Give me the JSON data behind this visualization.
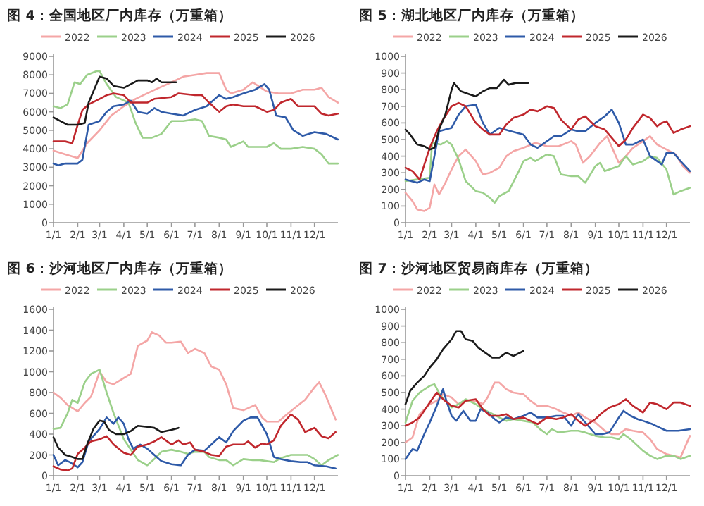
{
  "chart_data": [
    {
      "type": "line",
      "title": "图 4：全国地区厂内库存（万重箱）",
      "legend": "top",
      "xlim": [
        "--01-01",
        "--12-31"
      ],
      "xticks": [
        {
          "value": "--01-01",
          "label": "1/1"
        },
        {
          "value": "--02-01",
          "label": "2/1"
        },
        {
          "value": "--03-01",
          "label": "3/1"
        },
        {
          "value": "--04-01",
          "label": "4/1"
        },
        {
          "value": "--05-01",
          "label": "5/1"
        },
        {
          "value": "--06-01",
          "label": "6/1"
        },
        {
          "value": "--07-01",
          "label": "7/1"
        },
        {
          "value": "--08-01",
          "label": "8/1"
        },
        {
          "value": "--09-01",
          "label": "9/1"
        },
        {
          "value": "--10-01",
          "label": "10/1"
        },
        {
          "value": "--11-01",
          "label": "11/1"
        },
        {
          "value": "--12-01",
          "label": "12/1"
        }
      ],
      "ylim": [
        0,
        9000
      ],
      "yticks": [
        0,
        1000,
        2000,
        3000,
        4000,
        5000,
        6000,
        7000,
        8000,
        9000
      ],
      "series": [
        {
          "name": "2022",
          "color": "#f4a6a6",
          "x": [
            "--01-01",
            "--01-16",
            "--02-01",
            "--02-13",
            "--03-01",
            "--03-16",
            "--04-01",
            "--04-16",
            "--05-01",
            "--05-16",
            "--06-01",
            "--06-16",
            "--07-01",
            "--07-16",
            "--08-01",
            "--08-10",
            "--08-16",
            "--09-01",
            "--09-13",
            "--10-01",
            "--10-16",
            "--11-01",
            "--11-16",
            "--12-01",
            "--12-10",
            "--12-19",
            "--12-31"
          ],
          "values": [
            3900,
            3700,
            3500,
            4300,
            5000,
            5800,
            6300,
            6700,
            7000,
            7300,
            7600,
            7900,
            8000,
            8100,
            8100,
            7200,
            7000,
            7200,
            7600,
            7100,
            7000,
            7000,
            7200,
            7200,
            7300,
            6800,
            6500
          ]
        },
        {
          "name": "2023",
          "color": "#9bd08a",
          "x": [
            "--01-01",
            "--01-10",
            "--01-19",
            "--01-28",
            "--02-04",
            "--02-13",
            "--02-25",
            "--03-01",
            "--03-10",
            "--03-22",
            "--04-07",
            "--04-16",
            "--04-25",
            "--05-07",
            "--05-19",
            "--06-01",
            "--06-16",
            "--07-01",
            "--07-10",
            "--07-19",
            "--08-01",
            "--08-10",
            "--08-16",
            "--09-01",
            "--09-07",
            "--10-01",
            "--10-10",
            "--10-19",
            "--11-01",
            "--11-16",
            "--12-01",
            "--12-10",
            "--12-19",
            "--12-31"
          ],
          "values": [
            6300,
            6200,
            6400,
            7600,
            7500,
            8000,
            8200,
            8200,
            7500,
            6800,
            6500,
            5400,
            4600,
            4600,
            4800,
            5500,
            5500,
            5600,
            5500,
            4700,
            4600,
            4500,
            4100,
            4400,
            4100,
            4100,
            4300,
            4000,
            4000,
            4100,
            4000,
            3700,
            3200,
            3200
          ]
        },
        {
          "name": "2024",
          "color": "#2e5aa8",
          "x": [
            "--01-01",
            "--01-07",
            "--01-16",
            "--02-01",
            "--02-07",
            "--02-15",
            "--03-01",
            "--03-10",
            "--03-19",
            "--04-01",
            "--04-10",
            "--04-19",
            "--05-01",
            "--05-10",
            "--05-19",
            "--06-01",
            "--06-16",
            "--07-01",
            "--07-16",
            "--08-01",
            "--08-10",
            "--08-19",
            "--09-01",
            "--09-16",
            "--09-28",
            "--10-04",
            "--10-13",
            "--10-25",
            "--11-04",
            "--11-16",
            "--12-01",
            "--12-16",
            "--12-31"
          ],
          "values": [
            3200,
            3100,
            3200,
            3200,
            3400,
            5300,
            5500,
            6000,
            6300,
            6400,
            6600,
            6000,
            5900,
            6200,
            6000,
            5900,
            5800,
            6100,
            6300,
            6900,
            6700,
            6800,
            7000,
            7200,
            7500,
            7200,
            5800,
            5700,
            5000,
            4700,
            4900,
            4800,
            4500
          ]
        },
        {
          "name": "2025",
          "color": "#c0272d",
          "x": [
            "--01-01",
            "--01-16",
            "--01-25",
            "--02-01",
            "--02-07",
            "--02-15",
            "--03-01",
            "--03-10",
            "--03-19",
            "--04-01",
            "--04-10",
            "--04-25",
            "--05-01",
            "--05-10",
            "--06-01",
            "--06-10",
            "--07-01",
            "--07-10",
            "--07-19",
            "--08-01",
            "--08-10",
            "--08-19",
            "--09-01",
            "--09-16",
            "--10-01",
            "--10-10",
            "--10-19",
            "--11-01",
            "--11-10",
            "--12-01",
            "--12-10",
            "--12-19",
            "--12-31"
          ],
          "values": [
            4400,
            4400,
            4300,
            5300,
            6100,
            6400,
            6700,
            6900,
            7000,
            6900,
            6500,
            6500,
            6500,
            6700,
            6800,
            7000,
            6900,
            6900,
            6500,
            6000,
            6300,
            6400,
            6300,
            6300,
            6000,
            6100,
            6500,
            6700,
            6300,
            6300,
            5900,
            5800,
            5900
          ]
        },
        {
          "name": "2026",
          "color": "#1a1a1a",
          "x": [
            "--01-01",
            "--01-10",
            "--01-19",
            "--02-01",
            "--02-10",
            "--02-15",
            "--02-23",
            "--03-01",
            "--03-10",
            "--03-19",
            "--04-01",
            "--04-10",
            "--04-19",
            "--05-01",
            "--05-07",
            "--05-13",
            "--05-19",
            "--06-01",
            "--06-07"
          ],
          "values": [
            5700,
            5500,
            5300,
            5300,
            5400,
            6500,
            7300,
            7900,
            7800,
            7400,
            7300,
            7500,
            7700,
            7700,
            7600,
            7800,
            7600,
            7600,
            7600
          ]
        }
      ]
    },
    {
      "type": "line",
      "title": "图 5：湖北地区厂内库存（万重箱）",
      "legend": "top",
      "xlim": [
        "--01-01",
        "--12-31"
      ],
      "xticks": [
        {
          "value": "--01-01",
          "label": "1/1"
        },
        {
          "value": "--02-01",
          "label": "2/1"
        },
        {
          "value": "--03-01",
          "label": "3/1"
        },
        {
          "value": "--04-01",
          "label": "4/1"
        },
        {
          "value": "--05-01",
          "label": "5/1"
        },
        {
          "value": "--06-01",
          "label": "6/1"
        },
        {
          "value": "--07-01",
          "label": "7/1"
        },
        {
          "value": "--08-01",
          "label": "8/1"
        },
        {
          "value": "--09-01",
          "label": "9/1"
        },
        {
          "value": "--10-01",
          "label": "10/1"
        },
        {
          "value": "--11-01",
          "label": "11/1"
        },
        {
          "value": "--12-01",
          "label": "12/1"
        }
      ],
      "ylim": [
        0,
        1000
      ],
      "yticks": [
        0,
        100,
        200,
        300,
        400,
        500,
        600,
        700,
        800,
        900,
        1000
      ],
      "series": [
        {
          "name": "2022",
          "color": "#f4a6a6",
          "x": [
            "--01-01",
            "--01-10",
            "--01-16",
            "--01-25",
            "--02-01",
            "--02-07",
            "--02-13",
            "--02-21",
            "--03-01",
            "--03-10",
            "--03-19",
            "--04-01",
            "--04-10",
            "--04-19",
            "--05-01",
            "--05-10",
            "--05-19",
            "--06-01",
            "--06-16",
            "--07-01",
            "--07-16",
            "--08-01",
            "--08-07",
            "--08-16",
            "--08-25",
            "--09-07",
            "--09-16",
            "--10-01",
            "--10-10",
            "--10-19",
            "--11-01",
            "--11-10",
            "--11-19",
            "--12-01",
            "--12-13",
            "--12-22",
            "--12-31"
          ],
          "values": [
            180,
            130,
            80,
            70,
            90,
            230,
            170,
            240,
            320,
            400,
            440,
            370,
            290,
            300,
            330,
            400,
            430,
            450,
            480,
            460,
            460,
            490,
            470,
            360,
            400,
            480,
            520,
            360,
            400,
            450,
            490,
            520,
            470,
            440,
            410,
            340,
            300
          ]
        },
        {
          "name": "2023",
          "color": "#9bd08a",
          "x": [
            "--01-01",
            "--01-16",
            "--02-01",
            "--02-04",
            "--02-15",
            "--02-23",
            "--03-01",
            "--03-10",
            "--03-19",
            "--04-01",
            "--04-10",
            "--04-19",
            "--04-25",
            "--05-01",
            "--05-13",
            "--05-25",
            "--06-01",
            "--06-10",
            "--06-16",
            "--07-01",
            "--07-10",
            "--07-19",
            "--08-01",
            "--08-10",
            "--08-19",
            "--09-01",
            "--09-07",
            "--09-13",
            "--10-01",
            "--10-10",
            "--10-19",
            "--11-01",
            "--11-10",
            "--11-19",
            "--12-01",
            "--12-10",
            "--12-19",
            "--12-31"
          ],
          "values": [
            250,
            260,
            270,
            480,
            470,
            490,
            470,
            380,
            250,
            190,
            180,
            150,
            120,
            160,
            190,
            300,
            370,
            390,
            370,
            410,
            400,
            290,
            280,
            280,
            240,
            340,
            360,
            310,
            340,
            400,
            350,
            370,
            400,
            390,
            320,
            170,
            190,
            210
          ]
        },
        {
          "name": "2024",
          "color": "#2e5aa8",
          "x": [
            "--01-01",
            "--01-16",
            "--01-25",
            "--02-01",
            "--02-07",
            "--02-13",
            "--02-21",
            "--03-01",
            "--03-10",
            "--03-19",
            "--04-01",
            "--04-10",
            "--04-19",
            "--05-01",
            "--05-16",
            "--06-01",
            "--06-10",
            "--06-19",
            "--07-01",
            "--07-10",
            "--07-19",
            "--08-01",
            "--08-10",
            "--08-19",
            "--09-01",
            "--09-13",
            "--09-22",
            "--10-01",
            "--10-10",
            "--10-19",
            "--11-01",
            "--11-10",
            "--11-19",
            "--11-25",
            "--12-01",
            "--12-10",
            "--12-19",
            "--12-31"
          ],
          "values": [
            260,
            240,
            260,
            250,
            400,
            550,
            560,
            570,
            650,
            700,
            710,
            600,
            530,
            570,
            550,
            530,
            470,
            450,
            490,
            520,
            520,
            560,
            550,
            550,
            600,
            640,
            680,
            600,
            470,
            470,
            500,
            400,
            370,
            350,
            420,
            420,
            370,
            310
          ]
        },
        {
          "name": "2025",
          "color": "#c0272d",
          "x": [
            "--01-01",
            "--01-10",
            "--01-19",
            "--02-01",
            "--02-10",
            "--02-18",
            "--03-01",
            "--03-10",
            "--03-19",
            "--04-01",
            "--04-10",
            "--04-19",
            "--05-01",
            "--05-10",
            "--05-19",
            "--06-01",
            "--06-10",
            "--06-19",
            "--07-01",
            "--07-10",
            "--07-19",
            "--08-01",
            "--08-10",
            "--08-19",
            "--09-01",
            "--09-13",
            "--09-22",
            "--10-01",
            "--10-10",
            "--10-19",
            "--11-01",
            "--11-10",
            "--11-19",
            "--11-25",
            "--12-01",
            "--12-10",
            "--12-19",
            "--12-31"
          ],
          "values": [
            330,
            310,
            260,
            450,
            550,
            620,
            700,
            720,
            700,
            600,
            560,
            530,
            530,
            590,
            630,
            650,
            680,
            670,
            700,
            690,
            620,
            560,
            620,
            640,
            580,
            560,
            510,
            460,
            500,
            570,
            650,
            630,
            580,
            600,
            610,
            540,
            560,
            580
          ]
        },
        {
          "name": "2026",
          "color": "#1a1a1a",
          "x": [
            "--01-01",
            "--01-07",
            "--01-16",
            "--01-25",
            "--02-01",
            "--02-07",
            "--02-13",
            "--02-21",
            "--03-01",
            "--03-04",
            "--03-13",
            "--03-25",
            "--04-01",
            "--04-10",
            "--04-19",
            "--04-28",
            "--05-07",
            "--05-13",
            "--05-22",
            "--06-01",
            "--06-07"
          ],
          "values": [
            560,
            530,
            470,
            460,
            440,
            450,
            560,
            650,
            800,
            840,
            790,
            770,
            760,
            790,
            810,
            810,
            860,
            830,
            840,
            840,
            840
          ]
        }
      ]
    },
    {
      "type": "line",
      "title": "图 6：沙河地区厂内库存（万重箱）",
      "legend": "top",
      "xlim": [
        "--01-01",
        "--12-31"
      ],
      "xticks": [
        {
          "value": "--01-01",
          "label": "1/1"
        },
        {
          "value": "--02-01",
          "label": "2/1"
        },
        {
          "value": "--03-01",
          "label": "3/1"
        },
        {
          "value": "--04-01",
          "label": "4/1"
        },
        {
          "value": "--05-01",
          "label": "5/1"
        },
        {
          "value": "--06-01",
          "label": "6/1"
        },
        {
          "value": "--07-01",
          "label": "7/1"
        },
        {
          "value": "--08-01",
          "label": "8/1"
        },
        {
          "value": "--09-01",
          "label": "9/1"
        },
        {
          "value": "--10-01",
          "label": "10/1"
        },
        {
          "value": "--11-01",
          "label": "11/1"
        },
        {
          "value": "--12-01",
          "label": "12/1"
        }
      ],
      "ylim": [
        0,
        1600
      ],
      "yticks": [
        0,
        200,
        400,
        600,
        800,
        1000,
        1200,
        1400,
        1600
      ],
      "series": [
        {
          "name": "2022",
          "color": "#f4a6a6",
          "x": [
            "--01-01",
            "--01-10",
            "--01-19",
            "--02-01",
            "--02-10",
            "--02-18",
            "--03-01",
            "--03-10",
            "--03-19",
            "--04-01",
            "--04-10",
            "--04-19",
            "--05-01",
            "--05-07",
            "--05-16",
            "--05-25",
            "--06-01",
            "--06-13",
            "--06-22",
            "--07-01",
            "--07-13",
            "--07-22",
            "--08-01",
            "--08-10",
            "--08-19",
            "--09-01",
            "--09-16",
            "--09-25",
            "--10-01",
            "--10-16",
            "--10-25",
            "--11-07",
            "--11-19",
            "--12-01",
            "--12-07",
            "--12-16",
            "--12-28"
          ],
          "values": [
            800,
            750,
            680,
            620,
            700,
            760,
            1000,
            900,
            880,
            940,
            980,
            1250,
            1300,
            1380,
            1350,
            1280,
            1280,
            1290,
            1180,
            1220,
            1180,
            1050,
            1020,
            880,
            650,
            630,
            680,
            560,
            520,
            520,
            580,
            660,
            730,
            850,
            900,
            760,
            540
          ]
        },
        {
          "name": "2023",
          "color": "#9bd08a",
          "x": [
            "--01-01",
            "--01-10",
            "--01-19",
            "--01-25",
            "--02-01",
            "--02-10",
            "--02-18",
            "--03-01",
            "--03-10",
            "--03-19",
            "--04-01",
            "--04-10",
            "--04-19",
            "--05-01",
            "--05-10",
            "--05-19",
            "--06-01",
            "--06-13",
            "--06-22",
            "--07-01",
            "--07-13",
            "--07-19",
            "--08-01",
            "--08-10",
            "--08-19",
            "--09-01",
            "--09-13",
            "--09-22",
            "--10-01",
            "--10-10",
            "--10-19",
            "--11-01",
            "--11-13",
            "--11-22",
            "--12-01",
            "--12-10",
            "--12-19",
            "--12-31"
          ],
          "values": [
            450,
            460,
            600,
            730,
            700,
            900,
            980,
            1020,
            800,
            600,
            350,
            250,
            150,
            100,
            160,
            230,
            250,
            230,
            210,
            230,
            230,
            180,
            150,
            150,
            100,
            160,
            150,
            150,
            140,
            130,
            170,
            200,
            200,
            200,
            160,
            100,
            150,
            200
          ]
        },
        {
          "name": "2024",
          "color": "#2e5aa8",
          "x": [
            "--01-01",
            "--01-07",
            "--01-16",
            "--01-22",
            "--02-01",
            "--02-07",
            "--02-15",
            "--03-01",
            "--03-10",
            "--03-19",
            "--03-25",
            "--04-01",
            "--04-07",
            "--04-13",
            "--04-22",
            "--05-01",
            "--05-10",
            "--05-19",
            "--06-01",
            "--06-13",
            "--06-22",
            "--07-01",
            "--07-13",
            "--07-22",
            "--08-01",
            "--08-10",
            "--08-19",
            "--09-01",
            "--09-10",
            "--09-19",
            "--10-01",
            "--10-10",
            "--10-19",
            "--11-01",
            "--11-13",
            "--11-22",
            "--12-01",
            "--12-16",
            "--12-28"
          ],
          "values": [
            200,
            100,
            150,
            130,
            80,
            130,
            330,
            450,
            560,
            500,
            560,
            500,
            350,
            260,
            300,
            260,
            200,
            140,
            110,
            100,
            200,
            250,
            240,
            300,
            370,
            320,
            430,
            530,
            560,
            560,
            400,
            180,
            160,
            140,
            130,
            130,
            100,
            90,
            70
          ]
        },
        {
          "name": "2025",
          "color": "#c0272d",
          "x": [
            "--01-01",
            "--01-10",
            "--01-19",
            "--01-25",
            "--02-01",
            "--02-10",
            "--02-18",
            "--03-01",
            "--03-10",
            "--03-19",
            "--04-01",
            "--04-10",
            "--04-19",
            "--05-01",
            "--05-10",
            "--05-19",
            "--06-01",
            "--06-10",
            "--06-16",
            "--06-25",
            "--07-01",
            "--07-13",
            "--07-22",
            "--08-01",
            "--08-10",
            "--08-19",
            "--09-01",
            "--09-07",
            "--09-16",
            "--09-25",
            "--10-01",
            "--10-10",
            "--10-19",
            "--11-01",
            "--11-10",
            "--11-19",
            "--12-01",
            "--12-10",
            "--12-19",
            "--12-28"
          ],
          "values": [
            90,
            60,
            50,
            70,
            210,
            270,
            330,
            350,
            380,
            300,
            220,
            200,
            280,
            300,
            330,
            370,
            300,
            340,
            300,
            320,
            250,
            230,
            200,
            190,
            280,
            300,
            300,
            330,
            270,
            310,
            300,
            340,
            480,
            590,
            540,
            420,
            460,
            380,
            360,
            420
          ]
        },
        {
          "name": "2026",
          "color": "#1a1a1a",
          "x": [
            "--01-01",
            "--01-07",
            "--01-16",
            "--01-25",
            "--02-01",
            "--02-07",
            "--02-13",
            "--02-21",
            "--03-01",
            "--03-07",
            "--03-13",
            "--03-22",
            "--04-01",
            "--04-10",
            "--04-19",
            "--05-01",
            "--05-10",
            "--05-19",
            "--06-01",
            "--06-10"
          ],
          "values": [
            370,
            270,
            200,
            180,
            160,
            160,
            300,
            450,
            530,
            520,
            440,
            400,
            400,
            430,
            480,
            470,
            460,
            420,
            440,
            460
          ]
        }
      ]
    },
    {
      "type": "line",
      "title": "图 7：沙河地区贸易商库存（万重箱）",
      "legend": "top",
      "xlim": [
        "--01-01",
        "--12-31"
      ],
      "xticks": [
        {
          "value": "--01-01",
          "label": "1/1"
        },
        {
          "value": "--02-01",
          "label": "2/1"
        },
        {
          "value": "--03-01",
          "label": "3/1"
        },
        {
          "value": "--04-01",
          "label": "4/1"
        },
        {
          "value": "--05-01",
          "label": "5/1"
        },
        {
          "value": "--06-01",
          "label": "6/1"
        },
        {
          "value": "--07-01",
          "label": "7/1"
        },
        {
          "value": "--08-01",
          "label": "8/1"
        },
        {
          "value": "--09-01",
          "label": "9/1"
        },
        {
          "value": "--10-01",
          "label": "10/1"
        },
        {
          "value": "--11-01",
          "label": "11/1"
        },
        {
          "value": "--12-01",
          "label": "12/1"
        }
      ],
      "ylim": [
        0,
        1000
      ],
      "yticks": [
        0,
        100,
        200,
        300,
        400,
        500,
        600,
        700,
        800,
        900,
        1000
      ],
      "series": [
        {
          "name": "2022",
          "color": "#f4a6a6",
          "x": [
            "--01-01",
            "--01-10",
            "--01-19",
            "--02-01",
            "--02-10",
            "--02-18",
            "--03-01",
            "--03-10",
            "--03-19",
            "--04-01",
            "--04-10",
            "--04-16",
            "--04-25",
            "--05-01",
            "--05-10",
            "--05-19",
            "--06-01",
            "--06-10",
            "--06-19",
            "--07-01",
            "--07-13",
            "--07-22",
            "--08-01",
            "--08-10",
            "--08-19",
            "--09-01",
            "--09-13",
            "--09-22",
            "--10-01",
            "--10-10",
            "--10-19",
            "--11-01",
            "--11-10",
            "--11-19",
            "--12-01",
            "--12-10",
            "--12-19",
            "--12-31"
          ],
          "values": [
            200,
            230,
            370,
            430,
            450,
            490,
            470,
            430,
            450,
            450,
            430,
            470,
            560,
            560,
            520,
            500,
            490,
            450,
            420,
            420,
            400,
            380,
            360,
            380,
            350,
            320,
            270,
            250,
            250,
            280,
            270,
            260,
            220,
            160,
            130,
            120,
            110,
            240
          ]
        },
        {
          "name": "2023",
          "color": "#9bd08a",
          "x": [
            "--01-01",
            "--01-10",
            "--01-19",
            "--02-01",
            "--02-07",
            "--02-15",
            "--02-23",
            "--03-01",
            "--03-10",
            "--03-19",
            "--04-01",
            "--04-10",
            "--04-19",
            "--05-01",
            "--05-10",
            "--05-19",
            "--06-01",
            "--06-13",
            "--06-22",
            "--07-01",
            "--07-07",
            "--07-16",
            "--08-01",
            "--08-10",
            "--08-19",
            "--09-01",
            "--09-13",
            "--09-22",
            "--10-01",
            "--10-07",
            "--10-16",
            "--11-01",
            "--11-10",
            "--11-19",
            "--12-01",
            "--12-10",
            "--12-19",
            "--12-31"
          ],
          "values": [
            320,
            450,
            500,
            540,
            550,
            480,
            440,
            410,
            430,
            460,
            430,
            400,
            380,
            350,
            330,
            340,
            330,
            320,
            280,
            250,
            280,
            260,
            270,
            270,
            260,
            240,
            230,
            230,
            220,
            250,
            220,
            150,
            120,
            100,
            120,
            120,
            100,
            120
          ]
        },
        {
          "name": "2024",
          "color": "#2e5aa8",
          "x": [
            "--01-01",
            "--01-10",
            "--01-16",
            "--01-25",
            "--02-01",
            "--02-10",
            "--02-18",
            "--02-23",
            "--03-01",
            "--03-07",
            "--03-16",
            "--03-25",
            "--04-01",
            "--04-07",
            "--04-16",
            "--04-25",
            "--05-01",
            "--05-10",
            "--05-19",
            "--06-01",
            "--06-10",
            "--06-19",
            "--07-01",
            "--07-13",
            "--07-22",
            "--08-01",
            "--08-10",
            "--08-19",
            "--09-01",
            "--09-10",
            "--09-19",
            "--10-01",
            "--10-07",
            "--10-16",
            "--10-25",
            "--11-01",
            "--11-13",
            "--11-22",
            "--12-01",
            "--12-16",
            "--12-31"
          ],
          "values": [
            100,
            160,
            150,
            250,
            320,
            420,
            520,
            440,
            360,
            330,
            390,
            330,
            330,
            400,
            380,
            340,
            320,
            350,
            340,
            360,
            380,
            350,
            350,
            360,
            360,
            300,
            370,
            320,
            250,
            250,
            260,
            350,
            390,
            360,
            340,
            330,
            310,
            290,
            270,
            270,
            280
          ]
        },
        {
          "name": "2025",
          "color": "#c0272d",
          "x": [
            "--01-01",
            "--01-10",
            "--01-19",
            "--02-01",
            "--02-10",
            "--02-18",
            "--03-01",
            "--03-10",
            "--03-19",
            "--04-01",
            "--04-10",
            "--04-19",
            "--05-01",
            "--05-10",
            "--05-19",
            "--06-01",
            "--06-10",
            "--06-19",
            "--07-01",
            "--07-13",
            "--07-22",
            "--08-01",
            "--08-10",
            "--08-19",
            "--09-01",
            "--09-10",
            "--09-19",
            "--10-01",
            "--10-10",
            "--10-19",
            "--11-01",
            "--11-10",
            "--11-19",
            "--12-01",
            "--12-10",
            "--12-19",
            "--12-31"
          ],
          "values": [
            300,
            320,
            350,
            440,
            500,
            460,
            420,
            410,
            450,
            460,
            400,
            360,
            360,
            370,
            340,
            350,
            330,
            310,
            350,
            340,
            350,
            370,
            330,
            300,
            340,
            380,
            410,
            430,
            460,
            420,
            380,
            440,
            430,
            400,
            440,
            440,
            420
          ]
        },
        {
          "name": "2026",
          "color": "#1a1a1a",
          "x": [
            "--01-01",
            "--01-07",
            "--01-16",
            "--01-25",
            "--02-01",
            "--02-10",
            "--02-18",
            "--03-01",
            "--03-07",
            "--03-13",
            "--03-19",
            "--03-28",
            "--04-04",
            "--04-13",
            "--04-22",
            "--05-01",
            "--05-10",
            "--05-19",
            "--06-01"
          ],
          "values": [
            430,
            510,
            560,
            600,
            650,
            700,
            760,
            820,
            870,
            870,
            820,
            810,
            770,
            740,
            710,
            710,
            740,
            720,
            750
          ]
        }
      ]
    }
  ]
}
